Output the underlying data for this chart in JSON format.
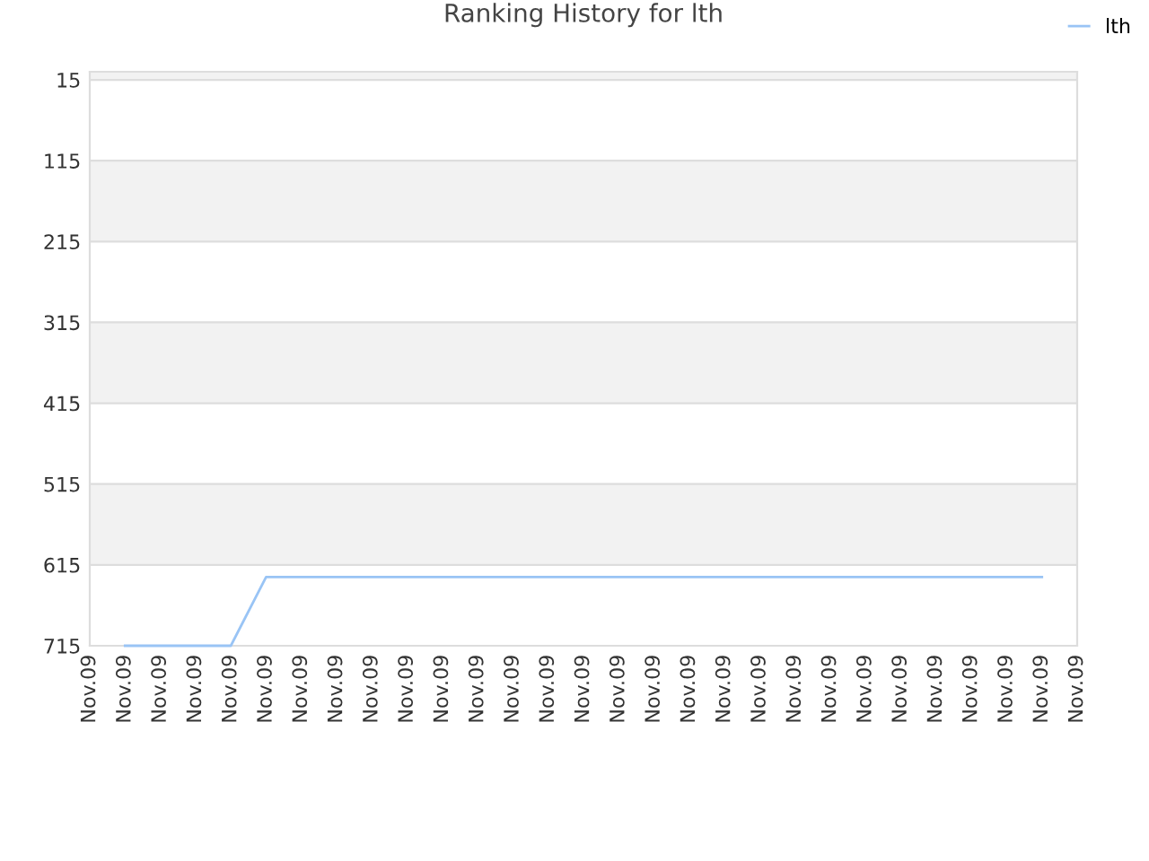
{
  "chart_data": {
    "type": "line",
    "title": "Ranking History for lth",
    "categories": [
      "Nov.09",
      "Nov.09",
      "Nov.09",
      "Nov.09",
      "Nov.09",
      "Nov.09",
      "Nov.09",
      "Nov.09",
      "Nov.09",
      "Nov.09",
      "Nov.09",
      "Nov.09",
      "Nov.09",
      "Nov.09",
      "Nov.09",
      "Nov.09",
      "Nov.09",
      "Nov.09",
      "Nov.09",
      "Nov.09",
      "Nov.09",
      "Nov.09",
      "Nov.09",
      "Nov.09",
      "Nov.09",
      "Nov.09",
      "Nov.09",
      "Nov.09",
      "Nov.09"
    ],
    "series": [
      {
        "name": "lth",
        "color": "#99c4f5",
        "values": [
          null,
          715,
          715,
          715,
          715,
          630,
          630,
          630,
          630,
          630,
          630,
          630,
          630,
          630,
          630,
          630,
          630,
          630,
          630,
          630,
          630,
          630,
          630,
          630,
          630,
          630,
          630,
          630,
          null
        ]
      }
    ],
    "ylim": [
      715,
      5
    ],
    "yticks": [
      15,
      115,
      215,
      315,
      415,
      515,
      615,
      715
    ],
    "grid": "y",
    "legend": "top right",
    "marker": "none",
    "line_style": "solid"
  }
}
